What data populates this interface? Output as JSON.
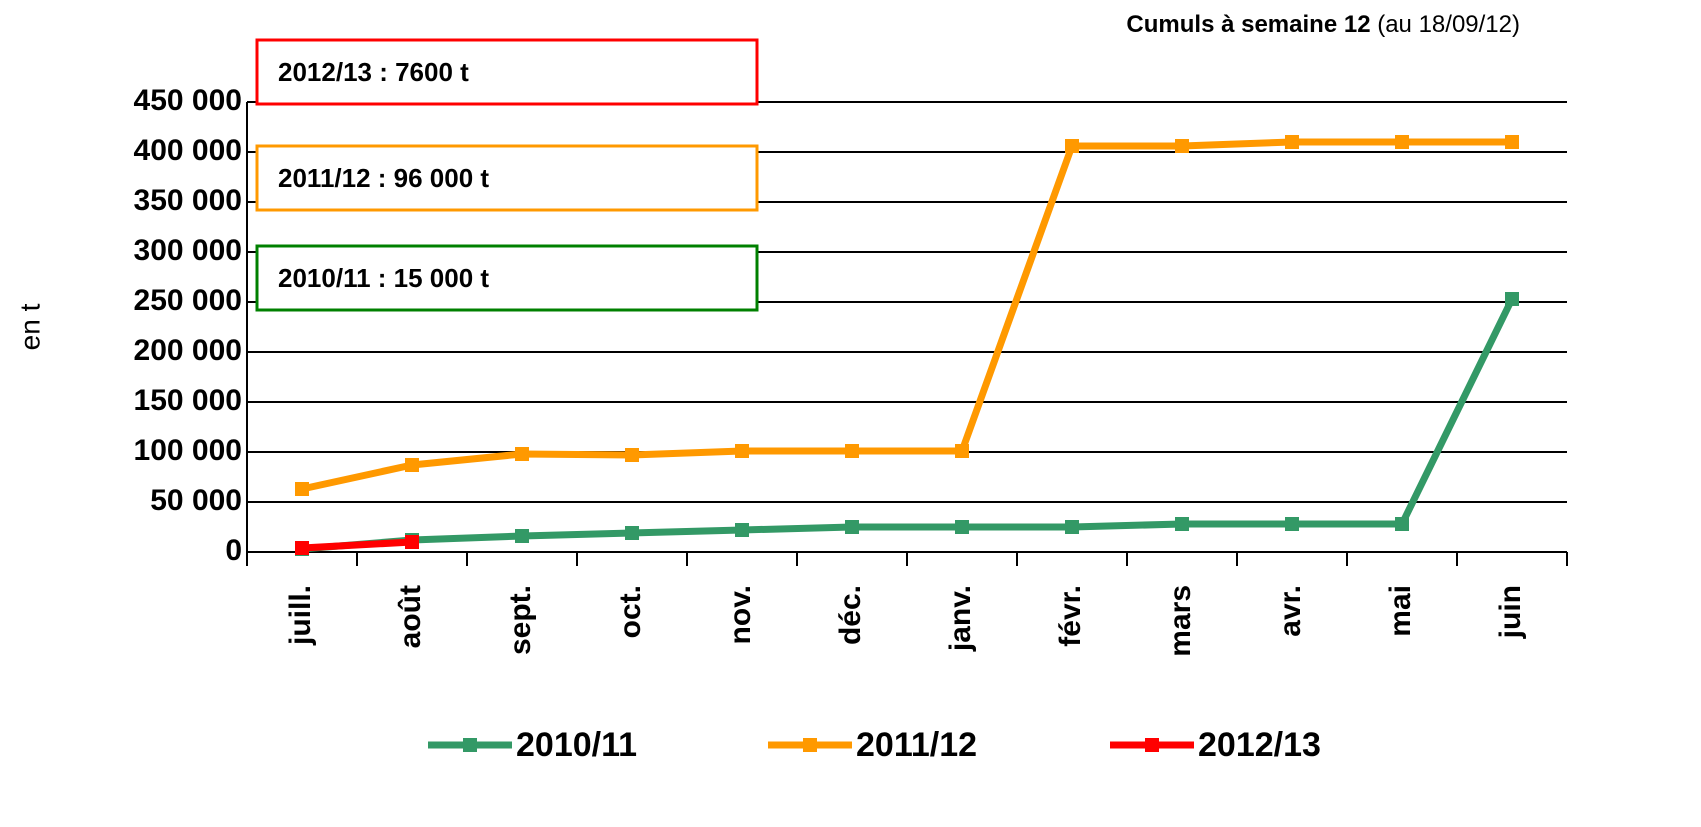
{
  "chart_data": {
    "type": "line",
    "subtitle_bold": "Cumuls à semaine 12",
    "subtitle": "(au 18/09/12)",
    "ylabel": "en t",
    "categories": [
      "juill.",
      "août",
      "sept.",
      "oct.",
      "nov.",
      "déc.",
      "janv.",
      "févr.",
      "mars",
      "avr.",
      "mai",
      "juin"
    ],
    "series": [
      {
        "name": "2010/11",
        "color": "#339966",
        "values": [
          3000,
          12000,
          16000,
          19000,
          22000,
          25000,
          25000,
          25000,
          28000,
          28000,
          28000,
          253000
        ]
      },
      {
        "name": "2011/12",
        "color": "#ff9900",
        "values": [
          63000,
          87000,
          98000,
          97000,
          101000,
          101000,
          101000,
          406000,
          406000,
          410000,
          410000,
          410000
        ]
      },
      {
        "name": "2012/13",
        "color": "#ff0000",
        "values": [
          4000,
          10000,
          null,
          null,
          null,
          null,
          null,
          null,
          null,
          null,
          null,
          null
        ]
      }
    ],
    "annotations": [
      {
        "text": "2012/13 : 7600 t",
        "color": "#ff0000"
      },
      {
        "text": "2011/12 : 96 000 t",
        "color": "#ff9900"
      },
      {
        "text": "2010/11 : 15 000 t",
        "color": "#008000"
      }
    ],
    "ylim": [
      0,
      450000
    ],
    "yticks": [
      0,
      {
        "value": 50000,
        "label": "50 000"
      },
      {
        "value": 100000,
        "label": "100 000"
      },
      {
        "value": 150000,
        "label": "150 000"
      },
      {
        "value": 200000,
        "label": "200 000"
      },
      {
        "value": 250000,
        "label": "250 000"
      },
      {
        "value": 300000,
        "label": "300 000"
      },
      {
        "value": 350000,
        "label": "350 000"
      },
      {
        "value": 400000,
        "label": "400 000"
      },
      {
        "value": 450000,
        "label": "450 000"
      }
    ],
    "grid": true
  }
}
